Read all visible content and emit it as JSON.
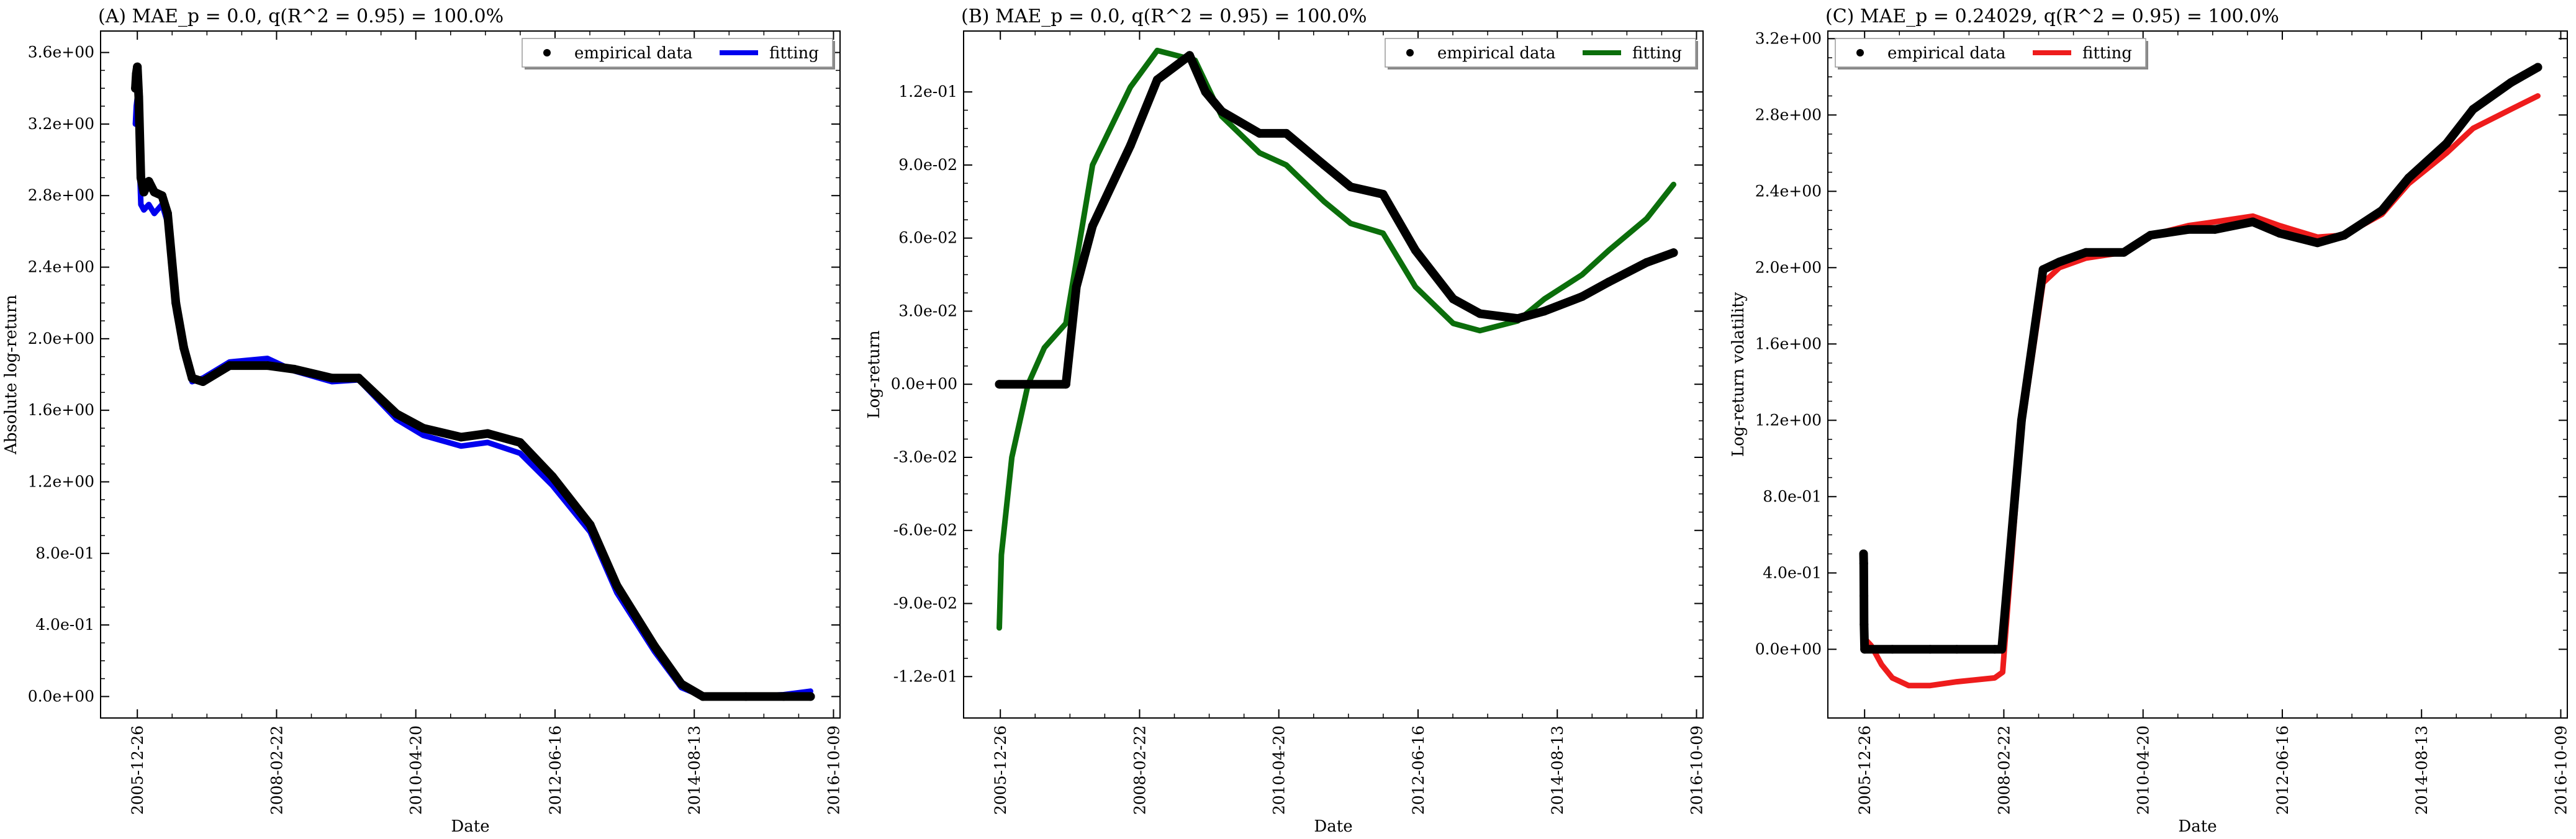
{
  "chart_data": [
    {
      "type": "line",
      "title": "(A) MAE_p = 0.0, q(R^2 = 0.95) = 100.0%",
      "xlabel": "Date",
      "ylabel": "Absolute log-return",
      "x_ticks": [
        "2005-12-26",
        "2008-02-22",
        "2010-04-20",
        "2012-06-16",
        "2014-08-13",
        "2016-10-09"
      ],
      "y_ticks": [
        "0.0e+00",
        "4.0e-01",
        "8.0e-01",
        "1.2e+00",
        "1.6e+00",
        "2.0e+00",
        "2.4e+00",
        "2.8e+00",
        "3.2e+00",
        "3.6e+00"
      ],
      "xlim": [
        "2005-06-01",
        "2016-11-15"
      ],
      "ylim": [
        -0.12,
        3.72
      ],
      "grid": false,
      "legend_position": "top-right",
      "series": [
        {
          "name": "empirical data",
          "style": "scatter",
          "color": "#000000",
          "x": [
            "2005-12-15",
            "2005-12-20",
            "2005-12-26",
            "2006-01-03",
            "2006-01-15",
            "2006-02-01",
            "2006-03-01",
            "2006-04-01",
            "2006-05-15",
            "2006-06-15",
            "2006-08-01",
            "2006-09-15",
            "2006-11-01",
            "2007-01-01",
            "2007-06-01",
            "2008-01-01",
            "2008-06-01",
            "2009-01-01",
            "2009-06-01",
            "2010-01-01",
            "2010-06-01",
            "2011-01-01",
            "2011-06-01",
            "2011-12-01",
            "2012-06-01",
            "2013-01-01",
            "2013-06-01",
            "2014-01-01",
            "2014-06-01",
            "2014-10-01",
            "2015-06-01",
            "2016-01-01",
            "2016-06-01"
          ],
          "values": [
            3.4,
            3.48,
            3.52,
            3.35,
            2.9,
            2.82,
            2.88,
            2.82,
            2.8,
            2.7,
            2.2,
            1.95,
            1.78,
            1.76,
            1.85,
            1.85,
            1.83,
            1.78,
            1.78,
            1.58,
            1.5,
            1.45,
            1.47,
            1.42,
            1.23,
            0.96,
            0.62,
            0.28,
            0.07,
            0.0,
            0.0,
            0.0,
            0.0
          ]
        },
        {
          "name": "fitting",
          "style": "line",
          "color": "#0000ee",
          "x": [
            "2005-12-15",
            "2005-12-20",
            "2005-12-26",
            "2006-01-03",
            "2006-01-15",
            "2006-02-01",
            "2006-03-01",
            "2006-04-01",
            "2006-05-15",
            "2006-06-15",
            "2006-08-01",
            "2006-09-15",
            "2006-11-01",
            "2007-01-01",
            "2007-06-01",
            "2008-01-01",
            "2008-06-01",
            "2009-01-01",
            "2009-06-01",
            "2010-01-01",
            "2010-06-01",
            "2011-01-01",
            "2011-06-01",
            "2011-12-01",
            "2012-06-01",
            "2013-01-01",
            "2013-06-01",
            "2014-01-01",
            "2014-06-01",
            "2014-10-01",
            "2015-06-01",
            "2016-01-01",
            "2016-06-01"
          ],
          "values": [
            3.2,
            3.3,
            3.35,
            3.1,
            2.75,
            2.72,
            2.75,
            2.7,
            2.75,
            2.65,
            2.15,
            1.92,
            1.76,
            1.78,
            1.87,
            1.89,
            1.82,
            1.76,
            1.77,
            1.55,
            1.46,
            1.4,
            1.42,
            1.36,
            1.18,
            0.92,
            0.58,
            0.25,
            0.05,
            0.0,
            0.0,
            0.01,
            0.03
          ]
        }
      ]
    },
    {
      "type": "line",
      "title": "(B) MAE_p = 0.0, q(R^2 = 0.95) = 100.0%",
      "xlabel": "Date",
      "ylabel": "Log-return",
      "x_ticks": [
        "2005-12-26",
        "2008-02-22",
        "2010-04-20",
        "2012-06-16",
        "2014-08-13",
        "2016-10-09"
      ],
      "y_ticks": [
        "-1.2e-01",
        "-9.0e-02",
        "-6.0e-02",
        "-3.0e-02",
        "0.0e+00",
        "3.0e-02",
        "6.0e-02",
        "9.0e-02",
        "1.2e-01"
      ],
      "xlim": [
        "2005-06-01",
        "2016-11-15"
      ],
      "ylim": [
        -0.137,
        0.145
      ],
      "grid": false,
      "legend_position": "top-right",
      "series": [
        {
          "name": "empirical data",
          "style": "scatter",
          "color": "#000000",
          "x": [
            "2005-12-20",
            "2006-06-01",
            "2007-01-01",
            "2007-03-01",
            "2007-06-01",
            "2008-01-01",
            "2008-06-01",
            "2008-12-01",
            "2009-03-01",
            "2009-06-01",
            "2010-01-01",
            "2010-06-01",
            "2011-01-01",
            "2011-06-01",
            "2011-12-01",
            "2012-06-01",
            "2013-01-01",
            "2013-06-01",
            "2014-01-01",
            "2014-06-01",
            "2015-01-01",
            "2015-06-01",
            "2016-01-01",
            "2016-06-01"
          ],
          "values": [
            0.0,
            0.0,
            0.0,
            0.04,
            0.065,
            0.098,
            0.125,
            0.135,
            0.12,
            0.112,
            0.103,
            0.103,
            0.09,
            0.081,
            0.078,
            0.055,
            0.035,
            0.029,
            0.027,
            0.03,
            0.036,
            0.042,
            0.05,
            0.054
          ]
        },
        {
          "name": "fitting",
          "style": "line",
          "color": "#0b6e0b",
          "x": [
            "2005-12-20",
            "2006-01-01",
            "2006-03-01",
            "2006-06-01",
            "2006-09-01",
            "2007-01-01",
            "2007-06-01",
            "2008-01-01",
            "2008-06-01",
            "2009-01-01",
            "2009-06-01",
            "2010-01-01",
            "2010-06-01",
            "2011-01-01",
            "2011-06-01",
            "2011-12-01",
            "2012-06-01",
            "2013-01-01",
            "2013-06-01",
            "2014-01-01",
            "2014-06-01",
            "2015-01-01",
            "2015-06-01",
            "2016-01-01",
            "2016-06-01"
          ],
          "values": [
            -0.1,
            -0.07,
            -0.03,
            0.0,
            0.015,
            0.025,
            0.09,
            0.122,
            0.137,
            0.133,
            0.11,
            0.095,
            0.09,
            0.075,
            0.066,
            0.062,
            0.04,
            0.025,
            0.022,
            0.026,
            0.035,
            0.045,
            0.055,
            0.068,
            0.082
          ]
        }
      ]
    },
    {
      "type": "line",
      "title": "(C) MAE_p = 0.24029, q(R^2 = 0.95) = 100.0%",
      "xlabel": "Date",
      "ylabel": "Log-return volatility",
      "x_ticks": [
        "2005-12-26",
        "2008-02-22",
        "2010-04-20",
        "2012-06-16",
        "2014-08-13",
        "2016-10-09"
      ],
      "y_ticks": [
        "0.0e+00",
        "4.0e-01",
        "8.0e-01",
        "1.2e+00",
        "1.6e+00",
        "2.0e+00",
        "2.4e+00",
        "2.8e+00",
        "3.2e+00"
      ],
      "xlim": [
        "2005-06-01",
        "2016-11-15"
      ],
      "ylim": [
        -0.36,
        3.24
      ],
      "grid": false,
      "legend_position": "top-left",
      "series": [
        {
          "name": "empirical data",
          "style": "scatter",
          "color": "#000000",
          "x": [
            "2005-12-20",
            "2005-12-21",
            "2005-12-22",
            "2005-12-23",
            "2005-12-26",
            "2006-06-01",
            "2007-01-01",
            "2007-06-01",
            "2008-01-01",
            "2008-02-10",
            "2008-06-01",
            "2008-10-01",
            "2009-01-01",
            "2009-06-01",
            "2010-01-01",
            "2010-06-01",
            "2011-01-01",
            "2011-06-01",
            "2012-01-01",
            "2012-06-01",
            "2013-01-01",
            "2013-06-01",
            "2014-01-01",
            "2014-06-01",
            "2015-01-01",
            "2015-06-01",
            "2016-01-01",
            "2016-06-01"
          ],
          "values": [
            0.5,
            0.45,
            0.28,
            0.13,
            0.0,
            0.0,
            0.0,
            0.0,
            0.0,
            0.0,
            1.2,
            1.99,
            2.03,
            2.08,
            2.08,
            2.17,
            2.2,
            2.2,
            2.24,
            2.18,
            2.13,
            2.17,
            2.3,
            2.47,
            2.65,
            2.83,
            2.97,
            3.05
          ]
        },
        {
          "name": "fitting",
          "style": "line",
          "color": "#ee1c1c",
          "x": [
            "2005-12-20",
            "2006-01-01",
            "2006-02-01",
            "2006-04-01",
            "2006-06-01",
            "2006-09-01",
            "2007-01-01",
            "2007-06-01",
            "2008-01-01",
            "2008-02-15",
            "2008-06-01",
            "2008-10-01",
            "2009-01-01",
            "2009-06-01",
            "2010-01-01",
            "2010-06-01",
            "2011-01-01",
            "2011-06-01",
            "2012-01-01",
            "2012-06-01",
            "2013-01-01",
            "2013-06-01",
            "2014-01-01",
            "2014-06-01",
            "2015-01-01",
            "2015-06-01",
            "2016-01-01",
            "2016-06-01"
          ],
          "values": [
            0.4,
            0.05,
            0.02,
            -0.08,
            -0.15,
            -0.19,
            -0.19,
            -0.17,
            -0.15,
            -0.12,
            1.15,
            1.92,
            2.0,
            2.05,
            2.08,
            2.17,
            2.22,
            2.24,
            2.27,
            2.22,
            2.16,
            2.17,
            2.28,
            2.44,
            2.6,
            2.73,
            2.83,
            2.9
          ]
        }
      ]
    }
  ]
}
